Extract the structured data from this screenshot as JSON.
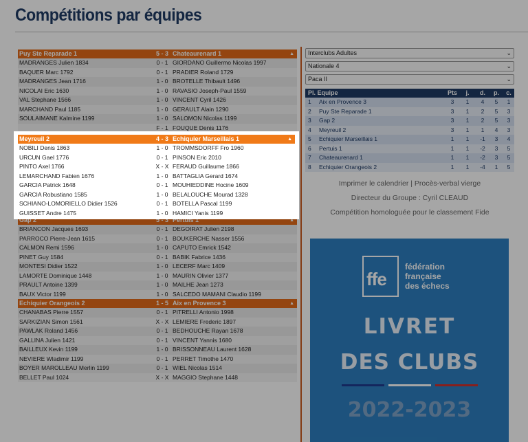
{
  "page_title": "Compétitions par équipes",
  "matches": [
    {
      "team_a": "Puy Ste Reparade 1",
      "score": "5 - 3",
      "team_b": "Chateaurenard 1",
      "rows": [
        {
          "a": "MADRANGES Julien 1834",
          "r": "0 - 1",
          "b": "GIORDANO Guillermo Nicolas 1997"
        },
        {
          "a": "BAQUER Marc 1792",
          "r": "0 - 1",
          "b": "PRADIER Roland 1729"
        },
        {
          "a": "MADRANGES Jean 1716",
          "r": "1 - 0",
          "b": "BROTELLE Thibault 1496"
        },
        {
          "a": "NICOLAI Eric 1630",
          "r": "1 - 0",
          "b": "RAVASIO Joseph-Paul 1559"
        },
        {
          "a": "VAL Stephane 1566",
          "r": "1 - 0",
          "b": "VINCENT Cyril 1426"
        },
        {
          "a": "MARCHAND Paul 1185",
          "r": "1 - 0",
          "b": "GERAULT Alain 1290"
        },
        {
          "a": "SOULAIMANE Kalmine 1199",
          "r": "1 - 0",
          "b": "SALOMON Nicolas 1199"
        },
        {
          "a": "",
          "r": "F - 1",
          "b": "FOUQUE Denis 1176"
        }
      ]
    },
    {
      "team_a": "Meyreuil 2",
      "score": "4 - 3",
      "team_b": "Echiquier Marseillais 1",
      "rows": [
        {
          "a": "NOBILI Denis 1863",
          "r": "1 - 0",
          "b": "TROMMSDORFF Fro 1960"
        },
        {
          "a": "URCUN Gael 1776",
          "r": "0 - 1",
          "b": "PINSON Eric 2010"
        },
        {
          "a": "PINTO Axel 1766",
          "r": "X - X",
          "b": "FERAUD Guillaume 1866"
        },
        {
          "a": "LEMARCHAND Fabien 1676",
          "r": "1 - 0",
          "b": "BATTAGLIA Gerard 1674"
        },
        {
          "a": "GARCIA Patrick 1648",
          "r": "0 - 1",
          "b": "MOUHIEDDINE Hocine 1609"
        },
        {
          "a": "GARCIA Robustiano 1585",
          "r": "1 - 0",
          "b": "BELALOUCHE Mourad 1328"
        },
        {
          "a": "SCHIANO-LOMORIELLO Didier 1526",
          "r": "0 - 1",
          "b": "BOTELLA Pascal 1199"
        },
        {
          "a": "GUISSET Andre 1475",
          "r": "1 - 0",
          "b": "HAMICI Yanis 1199"
        }
      ]
    },
    {
      "team_a": "Gap 2",
      "score": "5 - 3",
      "team_b": "Pertuis 1",
      "rows": [
        {
          "a": "BRIANCON Jacques 1693",
          "r": "0 - 1",
          "b": "DEGOIRAT Julien 2198"
        },
        {
          "a": "PARROCO Pierre-Jean 1615",
          "r": "0 - 1",
          "b": "BOUKERCHE Nasser 1556"
        },
        {
          "a": "CALMON Remi 1596",
          "r": "1 - 0",
          "b": "CAPUTO Emrick 1542"
        },
        {
          "a": "PINET Guy 1584",
          "r": "0 - 1",
          "b": "BABIK Fabrice 1436"
        },
        {
          "a": "MONTESI Didier 1522",
          "r": "1 - 0",
          "b": "LECERF Marc 1409"
        },
        {
          "a": "LAMORTE Dominique 1448",
          "r": "1 - 0",
          "b": "MAURIN Olivier 1377"
        },
        {
          "a": "PRAULT Antoine 1399",
          "r": "1 - 0",
          "b": "MAILHE Jean 1273"
        },
        {
          "a": "BAUX Victor 1199",
          "r": "1 - 0",
          "b": "SALCEDO MAMANI Claudio 1199"
        }
      ]
    },
    {
      "team_a": "Echiquier Orangeois 2",
      "score": "1 - 5",
      "team_b": "Aix en Provence 3",
      "rows": [
        {
          "a": "CHANABAS Pierre 1557",
          "r": "0 - 1",
          "b": "PITRELLI Antonio 1998"
        },
        {
          "a": "SARKIZIAN Simon 1561",
          "r": "X - X",
          "b": "LEMIERE Frederic 1897"
        },
        {
          "a": "PAWLAK Roland 1456",
          "r": "0 - 1",
          "b": "BEDHOUCHE Rayan 1678"
        },
        {
          "a": "GALLINA Julien 1421",
          "r": "0 - 1",
          "b": "VINCENT Yannis 1680"
        },
        {
          "a": "BAILLEUX Kevin 1199",
          "r": "1 - 0",
          "b": "BRISSONNEAU Laurent 1628"
        },
        {
          "a": "NEVIERE Wladimir 1199",
          "r": "0 - 1",
          "b": "PERRET Timothe 1470"
        },
        {
          "a": "BOYER MAROLLEAU Merlin 1199",
          "r": "0 - 1",
          "b": "WIEL Nicolas 1514"
        },
        {
          "a": "BELLET Paul 1024",
          "r": "X - X",
          "b": "MAGGIO Stephane 1448"
        }
      ]
    }
  ],
  "selects": [
    {
      "value": "Interclubs Adultes"
    },
    {
      "value": "Nationale 4"
    },
    {
      "value": "Paca II"
    }
  ],
  "standings": {
    "headers": {
      "rank_team": "Pl. Equipe",
      "pts": "Pts",
      "j": "j.",
      "d": "d.",
      "p": "p.",
      "c": "c."
    },
    "rows": [
      {
        "pl": "1",
        "team": "Aix en Provence 3",
        "pts": "3",
        "j": "1",
        "d": "4",
        "p": "5",
        "c": "1"
      },
      {
        "pl": "2",
        "team": "Puy Ste Reparade 1",
        "pts": "3",
        "j": "1",
        "d": "2",
        "p": "5",
        "c": "3"
      },
      {
        "pl": "3",
        "team": "Gap 2",
        "pts": "3",
        "j": "1",
        "d": "2",
        "p": "5",
        "c": "3"
      },
      {
        "pl": "4",
        "team": "Meyreuil 2",
        "pts": "3",
        "j": "1",
        "d": "1",
        "p": "4",
        "c": "3"
      },
      {
        "pl": "5",
        "team": "Echiquier Marseillais 1",
        "pts": "1",
        "j": "1",
        "d": "-1",
        "p": "3",
        "c": "4"
      },
      {
        "pl": "6",
        "team": "Pertuis 1",
        "pts": "1",
        "j": "1",
        "d": "-2",
        "p": "3",
        "c": "5"
      },
      {
        "pl": "7",
        "team": "Chateaurenard 1",
        "pts": "1",
        "j": "1",
        "d": "-2",
        "p": "3",
        "c": "5"
      },
      {
        "pl": "8",
        "team": "Echiquier Orangeois 2",
        "pts": "1",
        "j": "1",
        "d": "-4",
        "p": "1",
        "c": "5"
      }
    ]
  },
  "links": {
    "print_calendar": "Imprimer le calendrier",
    "separator": "|",
    "blank_report": "Procès-verbal vierge",
    "director": "Directeur du Groupe : Cyril CLEAUD",
    "fide": "Compétition homologuée pour le classement Fide"
  },
  "banner": {
    "logo_text": "ffe",
    "fed_line1": "fédération",
    "fed_line2": "française",
    "fed_line3": "des échecs",
    "line1": "LIVRET",
    "line2": "DES CLUBS",
    "year": "2022-2023",
    "flag_colors": [
      "#1f3b8f",
      "#ffffff",
      "#d0312d"
    ]
  },
  "colors": {
    "accent": "#e36b1a",
    "navy": "#1f3b64",
    "banner_blue": "#2d7fc0"
  }
}
